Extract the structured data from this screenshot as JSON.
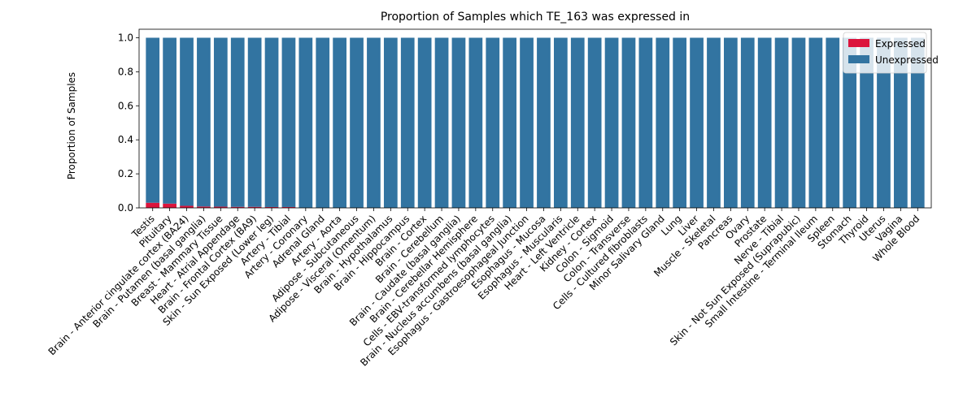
{
  "chart_data": {
    "type": "bar",
    "stacked": true,
    "title": "Proportion of Samples which TE_163 was expressed in",
    "xlabel": "",
    "ylabel": "Proportion of Samples",
    "ylim": [
      0,
      1.05
    ],
    "yticks": [
      "0.0",
      "0.2",
      "0.4",
      "0.6",
      "0.8",
      "1.0"
    ],
    "grid": false,
    "legend_position": "top-right",
    "categories": [
      "Testis",
      "Pituitary",
      "Brain - Anterior cingulate cortex (BA24)",
      "Brain - Putamen (basal ganglia)",
      "Breast - Mammary Tissue",
      "Heart - Atrial Appendage",
      "Brain - Frontal Cortex (BA9)",
      "Skin - Sun Exposed (Lower leg)",
      "Artery - Tibial",
      "Artery - Coronary",
      "Adrenal Gland",
      "Artery - Aorta",
      "Adipose - Subcutaneous",
      "Adipose - Visceral (Omentum)",
      "Brain - Hypothalamus",
      "Brain - Hippocampus",
      "Brain - Cortex",
      "Brain - Cerebellum",
      "Brain - Caudate (basal ganglia)",
      "Brain - Cerebellar Hemisphere",
      "Cells - EBV-transformed lymphocytes",
      "Brain - Nucleus accumbens (basal ganglia)",
      "Esophagus - Gastroesophageal Junction",
      "Esophagus - Mucosa",
      "Esophagus - Muscularis",
      "Heart - Left Ventricle",
      "Kidney - Cortex",
      "Colon - Sigmoid",
      "Colon - Transverse",
      "Cells - Cultured fibroblasts",
      "Minor Salivary Gland",
      "Lung",
      "Liver",
      "Muscle - Skeletal",
      "Pancreas",
      "Ovary",
      "Prostate",
      "Nerve - Tibial",
      "Skin - Not Sun Exposed (Suprapubic)",
      "Small Intestine - Terminal Ileum",
      "Spleen",
      "Stomach",
      "Thyroid",
      "Uterus",
      "Vagina",
      "Whole Blood"
    ],
    "series": [
      {
        "name": "Expressed",
        "color": "#dc143c",
        "values": [
          0.03,
          0.025,
          0.012,
          0.008,
          0.007,
          0.006,
          0.006,
          0.005,
          0.005,
          0,
          0,
          0,
          0,
          0,
          0,
          0,
          0,
          0,
          0,
          0,
          0,
          0,
          0,
          0,
          0,
          0,
          0,
          0,
          0,
          0,
          0,
          0,
          0,
          0,
          0,
          0,
          0,
          0,
          0,
          0,
          0,
          0,
          0,
          0,
          0,
          0
        ]
      },
      {
        "name": "Unexpressed",
        "color": "#3274a1",
        "values": [
          0.97,
          0.975,
          0.988,
          0.992,
          0.993,
          0.994,
          0.994,
          0.995,
          0.995,
          1,
          1,
          1,
          1,
          1,
          1,
          1,
          1,
          1,
          1,
          1,
          1,
          1,
          1,
          1,
          1,
          1,
          1,
          1,
          1,
          1,
          1,
          1,
          1,
          1,
          1,
          1,
          1,
          1,
          1,
          1,
          1,
          1,
          1,
          1,
          1,
          1
        ]
      }
    ]
  }
}
